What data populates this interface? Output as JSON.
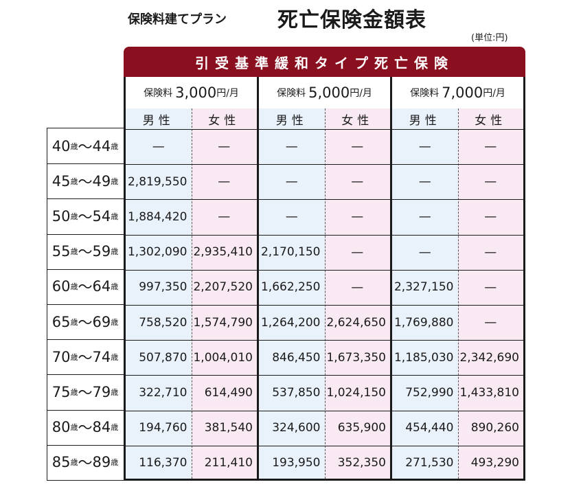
{
  "header": {
    "subtitle": "保険料建てプラン",
    "title": "死亡保険金額表",
    "unit": "(単位:円)"
  },
  "banner": "引受基準緩和タイプ死亡保険",
  "plans": [
    {
      "prefix": "保険料",
      "amount": "3,000",
      "suffix": "円/月"
    },
    {
      "prefix": "保険料",
      "amount": "5,000",
      "suffix": "円/月"
    },
    {
      "prefix": "保険料",
      "amount": "7,000",
      "suffix": "円/月"
    }
  ],
  "gender_labels": {
    "male": "男性",
    "female": "女性"
  },
  "age_suffix": "歳",
  "age_sep": "～",
  "rows": [
    {
      "from": "40",
      "to": "44",
      "values": [
        "—",
        "—",
        "—",
        "—",
        "—",
        "—"
      ]
    },
    {
      "from": "45",
      "to": "49",
      "values": [
        "2,819,550",
        "—",
        "—",
        "—",
        "—",
        "—"
      ]
    },
    {
      "from": "50",
      "to": "54",
      "values": [
        "1,884,420",
        "—",
        "—",
        "—",
        "—",
        "—"
      ]
    },
    {
      "from": "55",
      "to": "59",
      "values": [
        "1,302,090",
        "2,935,410",
        "2,170,150",
        "—",
        "—",
        "—"
      ]
    },
    {
      "from": "60",
      "to": "64",
      "values": [
        "997,350",
        "2,207,520",
        "1,662,250",
        "—",
        "2,327,150",
        "—"
      ]
    },
    {
      "from": "65",
      "to": "69",
      "values": [
        "758,520",
        "1,574,790",
        "1,264,200",
        "2,624,650",
        "1,769,880",
        "—"
      ]
    },
    {
      "from": "70",
      "to": "74",
      "values": [
        "507,870",
        "1,004,010",
        "846,450",
        "1,673,350",
        "1,185,030",
        "2,342,690"
      ]
    },
    {
      "from": "75",
      "to": "79",
      "values": [
        "322,710",
        "614,490",
        "537,850",
        "1,024,150",
        "752,990",
        "1,433,810"
      ]
    },
    {
      "from": "80",
      "to": "84",
      "values": [
        "194,760",
        "381,540",
        "324,600",
        "635,900",
        "454,440",
        "890,260"
      ]
    },
    {
      "from": "85",
      "to": "89",
      "values": [
        "116,370",
        "211,410",
        "193,950",
        "352,350",
        "271,530",
        "493,290"
      ]
    }
  ]
}
